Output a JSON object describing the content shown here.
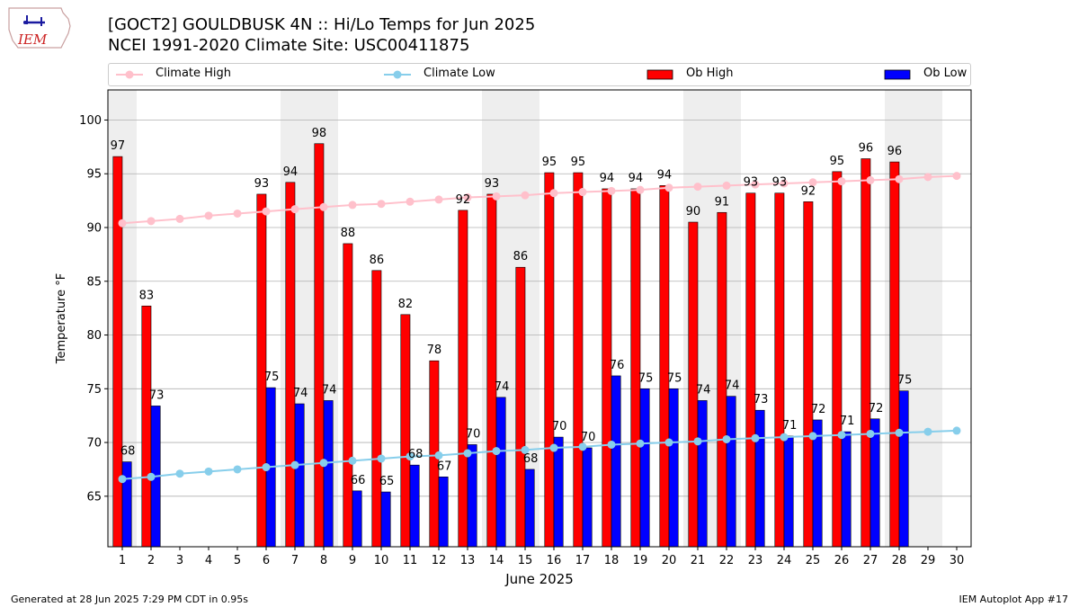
{
  "header": {
    "logo_text": "IEM",
    "title_line1": "[GOCT2] GOULDBUSK 4N :: Hi/Lo Temps for Jun 2025",
    "title_line2": "NCEI 1991-2020 Climate Site: USC00411875"
  },
  "legend": {
    "placement": "top",
    "items": [
      {
        "label": "Climate High",
        "color": "#ffc0cb",
        "kind": "line-marker"
      },
      {
        "label": "Climate Low",
        "color": "#87ceeb",
        "kind": "line-marker"
      },
      {
        "label": "Ob High",
        "color": "#ff0000",
        "kind": "bar"
      },
      {
        "label": "Ob Low",
        "color": "#0000ff",
        "kind": "bar"
      }
    ]
  },
  "colors": {
    "ob_high": "#ff0000",
    "ob_low": "#0000ff",
    "climate_high": "#ffc0cb",
    "climate_low": "#87ceeb",
    "weekend_shade": "#eeeeee",
    "grid": "#b0b0b0"
  },
  "chart_data": {
    "type": "bar",
    "title": "[GOCT2] GOULDBUSK 4N :: Hi/Lo Temps for Jun 2025",
    "subtitle": "NCEI 1991-2020 Climate Site: USC00411875",
    "xlabel": "June 2025",
    "ylabel": "Temperature °F",
    "categories": [
      "1",
      "2",
      "3",
      "4",
      "5",
      "6",
      "7",
      "8",
      "9",
      "10",
      "11",
      "12",
      "13",
      "14",
      "15",
      "16",
      "17",
      "18",
      "19",
      "20",
      "21",
      "22",
      "23",
      "24",
      "25",
      "26",
      "27",
      "28",
      "29",
      "30"
    ],
    "ylim": [
      60.3,
      102.8
    ],
    "xlim": [
      0.5,
      30.5
    ],
    "yticks": [
      65,
      70,
      75,
      80,
      85,
      90,
      95,
      100
    ],
    "grid": "horizontal",
    "weekend_days": [
      1,
      7,
      8,
      14,
      15,
      21,
      22,
      28,
      29
    ],
    "series": [
      {
        "name": "Ob High",
        "type": "bar",
        "values": [
          96.6,
          82.7,
          null,
          null,
          null,
          93.1,
          94.2,
          97.8,
          88.5,
          86.0,
          81.9,
          77.6,
          91.6,
          93.1,
          86.3,
          95.1,
          95.1,
          93.6,
          93.6,
          93.9,
          90.5,
          91.4,
          93.2,
          93.2,
          92.4,
          95.2,
          96.4,
          96.1,
          null,
          null
        ],
        "labels": [
          "97",
          "83",
          "",
          "",
          "",
          "93",
          "94",
          "98",
          "88",
          "86",
          "82",
          "78",
          "92",
          "93",
          "86",
          "95",
          "95",
          "94",
          "94",
          "94",
          "90",
          "91",
          "93",
          "93",
          "92",
          "95",
          "96",
          "96",
          "",
          ""
        ]
      },
      {
        "name": "Ob Low",
        "type": "bar",
        "values": [
          68.2,
          73.4,
          null,
          null,
          null,
          75.1,
          73.6,
          73.9,
          65.5,
          65.4,
          67.9,
          66.8,
          69.8,
          74.2,
          67.5,
          70.5,
          69.5,
          76.2,
          75.0,
          75.0,
          73.9,
          74.3,
          73.0,
          70.6,
          72.1,
          71.0,
          72.2,
          74.8,
          null,
          null
        ],
        "labels": [
          "68",
          "73",
          "",
          "",
          "",
          "75",
          "74",
          "74",
          "66",
          "65",
          "68",
          "67",
          "70",
          "74",
          "68",
          "70",
          "70",
          "76",
          "75",
          "75",
          "74",
          "74",
          "73",
          "71",
          "72",
          "71",
          "72",
          "75",
          "",
          ""
        ]
      },
      {
        "name": "Climate High",
        "type": "line",
        "values": [
          90.4,
          90.6,
          90.8,
          91.1,
          91.3,
          91.5,
          91.7,
          91.9,
          92.1,
          92.2,
          92.4,
          92.6,
          92.8,
          92.9,
          93.0,
          93.2,
          93.3,
          93.4,
          93.5,
          93.7,
          93.8,
          93.9,
          94.0,
          94.1,
          94.2,
          94.3,
          94.4,
          94.5,
          94.7,
          94.8
        ]
      },
      {
        "name": "Climate Low",
        "type": "line",
        "values": [
          66.6,
          66.8,
          67.1,
          67.3,
          67.5,
          67.7,
          67.9,
          68.1,
          68.3,
          68.5,
          68.7,
          68.8,
          69.0,
          69.2,
          69.3,
          69.5,
          69.6,
          69.8,
          69.9,
          70.0,
          70.1,
          70.3,
          70.4,
          70.5,
          70.6,
          70.7,
          70.8,
          70.9,
          71.0,
          71.1
        ]
      }
    ]
  },
  "footer": {
    "generated": "Generated at 28 Jun 2025 7:29 PM CDT in 0.95s",
    "app": "IEM Autoplot App #17"
  }
}
